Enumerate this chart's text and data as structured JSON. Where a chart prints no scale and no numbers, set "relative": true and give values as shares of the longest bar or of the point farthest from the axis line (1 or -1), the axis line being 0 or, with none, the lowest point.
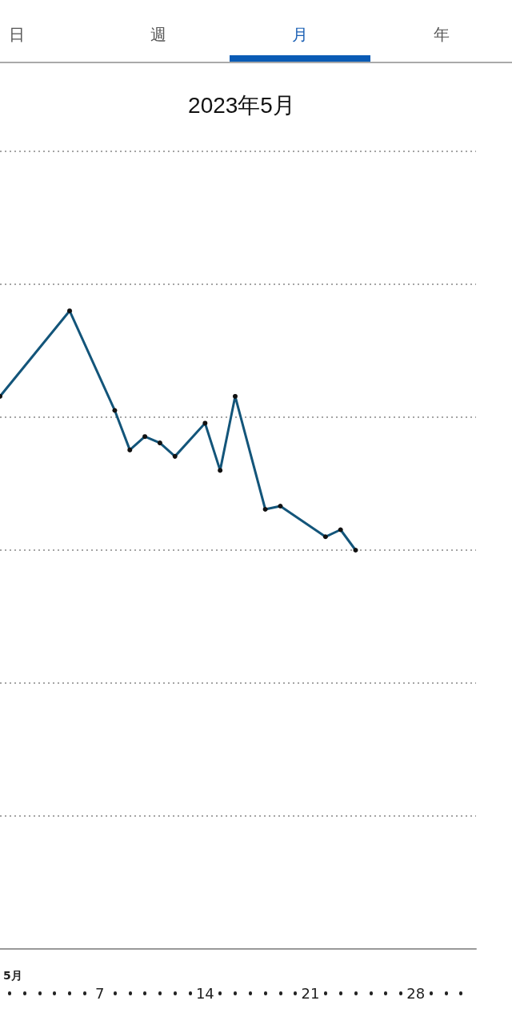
{
  "chart_data": {
    "type": "line",
    "title": "2023年5月",
    "annotations": [
      "日",
      "週",
      "月",
      "年"
    ],
    "xlabel": "5月",
    "x": [
      "--04-30T09:00",
      "--05-05",
      "--05-08",
      "--05-09",
      "--05-10",
      "--05-11",
      "--05-12",
      "--05-14",
      "--05-15",
      "--05-16",
      "--05-18",
      "--05-19",
      "--05-22",
      "--05-23",
      "--05-24"
    ],
    "series": [
      {
        "color": "#13557a",
        "values": [
          0.866,
          1,
          0.844,
          0.782,
          0.803,
          0.793,
          0.772,
          0.824,
          0.75,
          0.866,
          0.689,
          0.694,
          0.646,
          0.657,
          0.625
        ]
      }
    ],
    "relative": true,
    "xlim": [
      "--04-30T09:00",
      "--06-01T00:00"
    ],
    "xticks": [
      {
        "value": "--05-07",
        "label": "7"
      },
      {
        "value": "--05-14",
        "label": "14"
      },
      {
        "value": "--05-21",
        "label": "21"
      },
      {
        "value": "--05-28",
        "label": "28"
      }
    ],
    "grid": "y",
    "marker": "circle",
    "line_style": "solid",
    "tick_labels": "x"
  }
}
